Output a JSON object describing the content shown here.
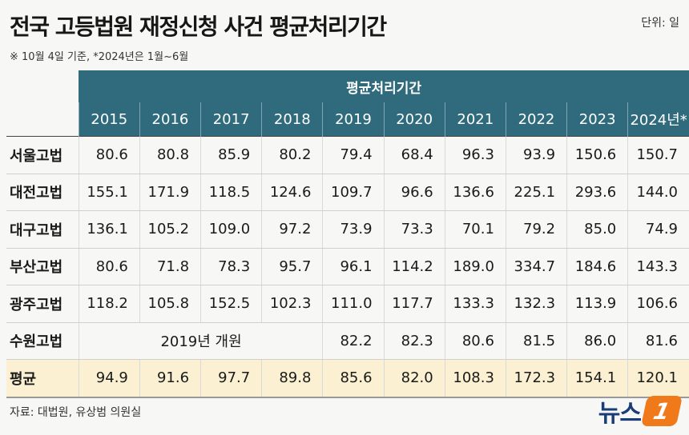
{
  "title": "전국 고등법원 재정신청 사건 평균처리기간",
  "unit": "단위: 일",
  "note": "※ 10월 4일 기준, *2024년은 1월~6월",
  "table": {
    "group_header": "평균처리기간",
    "years": [
      "2015",
      "2016",
      "2017",
      "2018",
      "2019",
      "2020",
      "2021",
      "2022",
      "2023",
      "2024년*"
    ],
    "rows": [
      {
        "court": "서울고법",
        "values": [
          "80.6",
          "80.8",
          "85.9",
          "80.2",
          "79.4",
          "68.4",
          "96.3",
          "93.9",
          "150.6",
          "150.7"
        ]
      },
      {
        "court": "대전고법",
        "values": [
          "155.1",
          "171.9",
          "118.5",
          "124.6",
          "109.7",
          "96.6",
          "136.6",
          "225.1",
          "293.6",
          "144.0"
        ]
      },
      {
        "court": "대구고법",
        "values": [
          "136.1",
          "105.2",
          "109.0",
          "97.2",
          "73.9",
          "73.3",
          "70.1",
          "79.2",
          "85.0",
          "74.9"
        ]
      },
      {
        "court": "부산고법",
        "values": [
          "80.6",
          "71.8",
          "78.3",
          "95.7",
          "96.1",
          "114.2",
          "189.0",
          "334.7",
          "184.6",
          "143.3"
        ]
      },
      {
        "court": "광주고법",
        "values": [
          "118.2",
          "105.8",
          "152.5",
          "102.3",
          "111.0",
          "117.7",
          "133.3",
          "132.3",
          "113.9",
          "106.6"
        ]
      }
    ],
    "suwon": {
      "court": "수원고법",
      "merged_text": "2019년 개원",
      "values": [
        "82.2",
        "82.3",
        "80.6",
        "81.5",
        "86.0",
        "81.6"
      ]
    },
    "average": {
      "court": "평균",
      "values": [
        "94.9",
        "91.6",
        "97.7",
        "89.8",
        "85.6",
        "82.0",
        "108.3",
        "172.3",
        "154.1",
        "120.1"
      ]
    }
  },
  "source": "자료: 대법원, 유상범 의원실",
  "logo": {
    "text": "뉴스",
    "mark": "1",
    "color": "#f07a1a"
  }
}
